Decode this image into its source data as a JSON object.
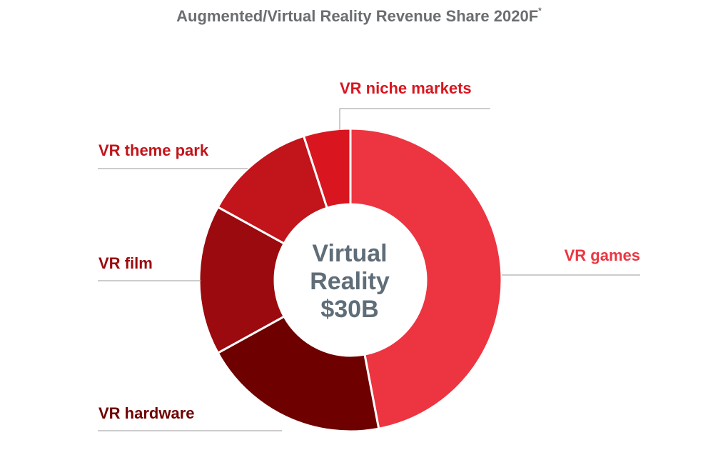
{
  "chart_data": {
    "type": "pie",
    "title": "Augmented/Virtual Reality Revenue Share 2020F",
    "title_mark": "*",
    "center_label": [
      "Virtual",
      "Reality",
      "$30B"
    ],
    "slices": [
      {
        "label": "VR games",
        "value": 47,
        "color": "#ec3541"
      },
      {
        "label": "VR hardware",
        "value": 20,
        "color": "#6f0000"
      },
      {
        "label": "VR film",
        "value": 16,
        "color": "#9b0a0e"
      },
      {
        "label": "VR theme park",
        "value": 12,
        "color": "#c1141b"
      },
      {
        "label": "VR niche markets",
        "value": 5,
        "color": "#d9161f"
      }
    ]
  }
}
